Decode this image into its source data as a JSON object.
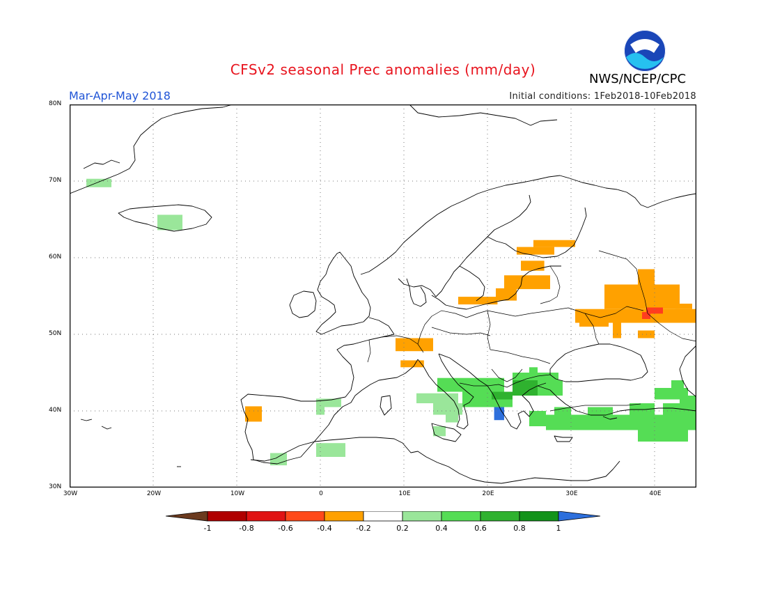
{
  "header": {
    "title": "CFSv2 seasonal Prec anomalies (mm/day)",
    "period": "Mar-Apr-May 2018",
    "initial_conditions": "Initial conditions: 1Feb2018-10Feb2018",
    "agency": "NWS/NCEP/CPC",
    "logo_text": "NOAA"
  },
  "map": {
    "projection": "lat-lon",
    "lon_range": [
      -30,
      45
    ],
    "lat_range": [
      30,
      80
    ],
    "lat_ticks": [
      "30N",
      "40N",
      "50N",
      "60N",
      "70N",
      "80N"
    ],
    "lon_ticks": [
      "30W",
      "20W",
      "10W",
      "0",
      "10E",
      "20E",
      "30E",
      "40E"
    ],
    "gridlines": "dotted",
    "colors": {
      "dry_strong": "#ff3d1f",
      "dry": "#ffa100",
      "wet_light": "#9ae69a",
      "wet": "#55dd55",
      "wet_strong": "#2fb22f",
      "very_wet": "#2d6fdc"
    },
    "anomaly_regions": [
      {
        "name": "Greenland east coast",
        "level": "wet_light"
      },
      {
        "name": "Iceland",
        "level": "wet_light"
      },
      {
        "name": "Portugal",
        "level": "dry"
      },
      {
        "name": "Alps / southern Germany",
        "level": "dry"
      },
      {
        "name": "Northern Italy",
        "level": "dry"
      },
      {
        "name": "Poland / Baltic coast",
        "level": "dry"
      },
      {
        "name": "Latvia / Estonia",
        "level": "dry"
      },
      {
        "name": "Southern Finland / Karelia",
        "level": "dry"
      },
      {
        "name": "Western Russia",
        "level": "dry"
      },
      {
        "name": "Central Russia core",
        "level": "dry_strong"
      },
      {
        "name": "Balkans",
        "level": "wet"
      },
      {
        "name": "Bulgaria",
        "level": "wet_strong"
      },
      {
        "name": "Southern Italy",
        "level": "wet_light"
      },
      {
        "name": "Turkey",
        "level": "wet"
      },
      {
        "name": "Northern Greece",
        "level": "very_wet"
      },
      {
        "name": "Spain east coast",
        "level": "wet_light"
      },
      {
        "name": "North Africa coast",
        "level": "wet_light"
      },
      {
        "name": "Caucasus",
        "level": "wet"
      }
    ]
  },
  "colorbar": {
    "labels": [
      "-1",
      "-0.8",
      "-0.6",
      "-0.4",
      "-0.2",
      "0.2",
      "0.4",
      "0.6",
      "0.8",
      "1"
    ],
    "colors": [
      "#6b3a1e",
      "#b00000",
      "#e01414",
      "#ff4a1a",
      "#ffa100",
      "#ffffff",
      "#9ae69a",
      "#55dd55",
      "#2fb22f",
      "#12931a",
      "#2d6fdc"
    ]
  }
}
